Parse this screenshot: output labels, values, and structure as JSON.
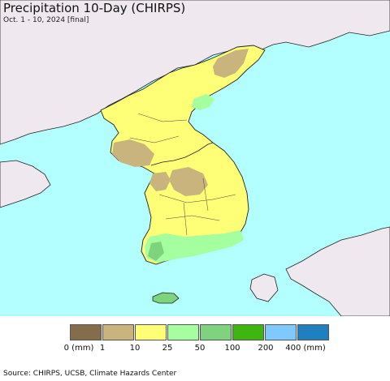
{
  "title": "Precipitation 10-Day (CHIRPS)",
  "subtitle": "Oct. 1 - 10, 2024 [final]",
  "source": "Source: CHIRPS, UCSB, Climate Hazards Center",
  "colors": {
    "ocean": "#b3ffff",
    "foreign_land": "#efe9ef",
    "land_bright_yellow": "#ffff77",
    "land_dry_tan": "#c8b47c"
  },
  "legend": {
    "colors": [
      "#846d4b",
      "#c8b47c",
      "#ffff77",
      "#a6ff9e",
      "#7ed47c",
      "#3fb60f",
      "#7ec9ff",
      "#1f7fbf"
    ],
    "ticks": [
      "0 (mm)",
      "1",
      "10",
      "25",
      "50",
      "100",
      "200",
      "400 (mm)"
    ]
  }
}
